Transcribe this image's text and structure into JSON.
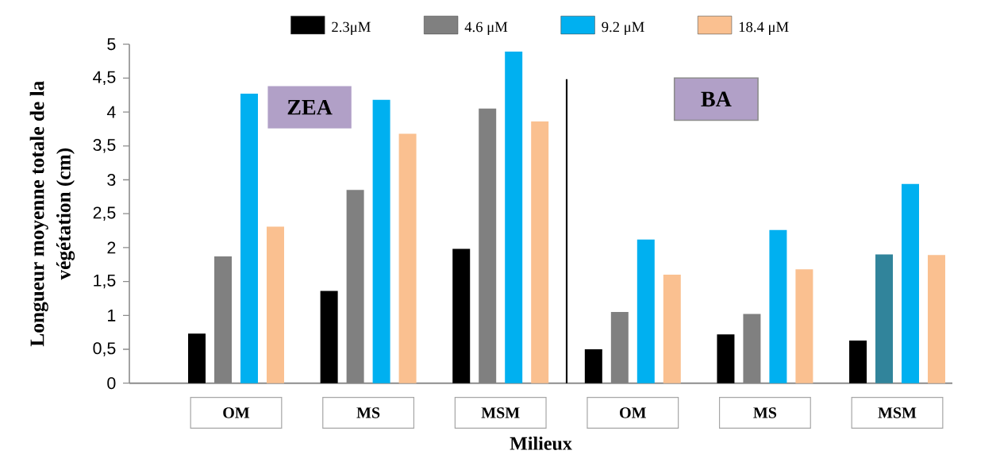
{
  "chart_data": {
    "type": "bar",
    "xlabel": "Milieux",
    "ylabel": "Longueur moyenne totale de la végétation (cm)",
    "categories": [
      "OM",
      "MS",
      "MSM",
      "OM",
      "MS",
      "MSM"
    ],
    "series": [
      {
        "name": "2.3μM",
        "color": "#000000",
        "values": [
          0.73,
          1.36,
          1.98,
          0.5,
          0.72,
          0.63
        ]
      },
      {
        "name": "4.6 μM",
        "color": "#808080",
        "colors": [
          "#808080",
          "#808080",
          "#808080",
          "#808080",
          "#808080",
          "#31849b"
        ],
        "values": [
          1.87,
          2.85,
          4.05,
          1.05,
          1.02,
          1.9
        ]
      },
      {
        "name": "9.2 μM",
        "color": "#00b0f0",
        "values": [
          4.27,
          4.18,
          4.89,
          2.12,
          2.26,
          2.94
        ]
      },
      {
        "name": "18.4 μM",
        "color": "#fac090",
        "values": [
          2.31,
          3.68,
          3.86,
          1.6,
          1.68,
          1.89
        ]
      }
    ],
    "ylim": [
      0,
      5
    ],
    "yticks": [
      0,
      {
        "value": 0.5,
        "label": "0,5"
      },
      1,
      {
        "value": 1.5,
        "label": "1,5"
      },
      2,
      {
        "value": 2.5,
        "label": "2,5"
      },
      3,
      {
        "value": 3.5,
        "label": "3,5"
      },
      4,
      {
        "value": 4.5,
        "label": "4,5"
      },
      5
    ],
    "legend": "top",
    "annotations": [
      "ZEA",
      "BA"
    ]
  }
}
